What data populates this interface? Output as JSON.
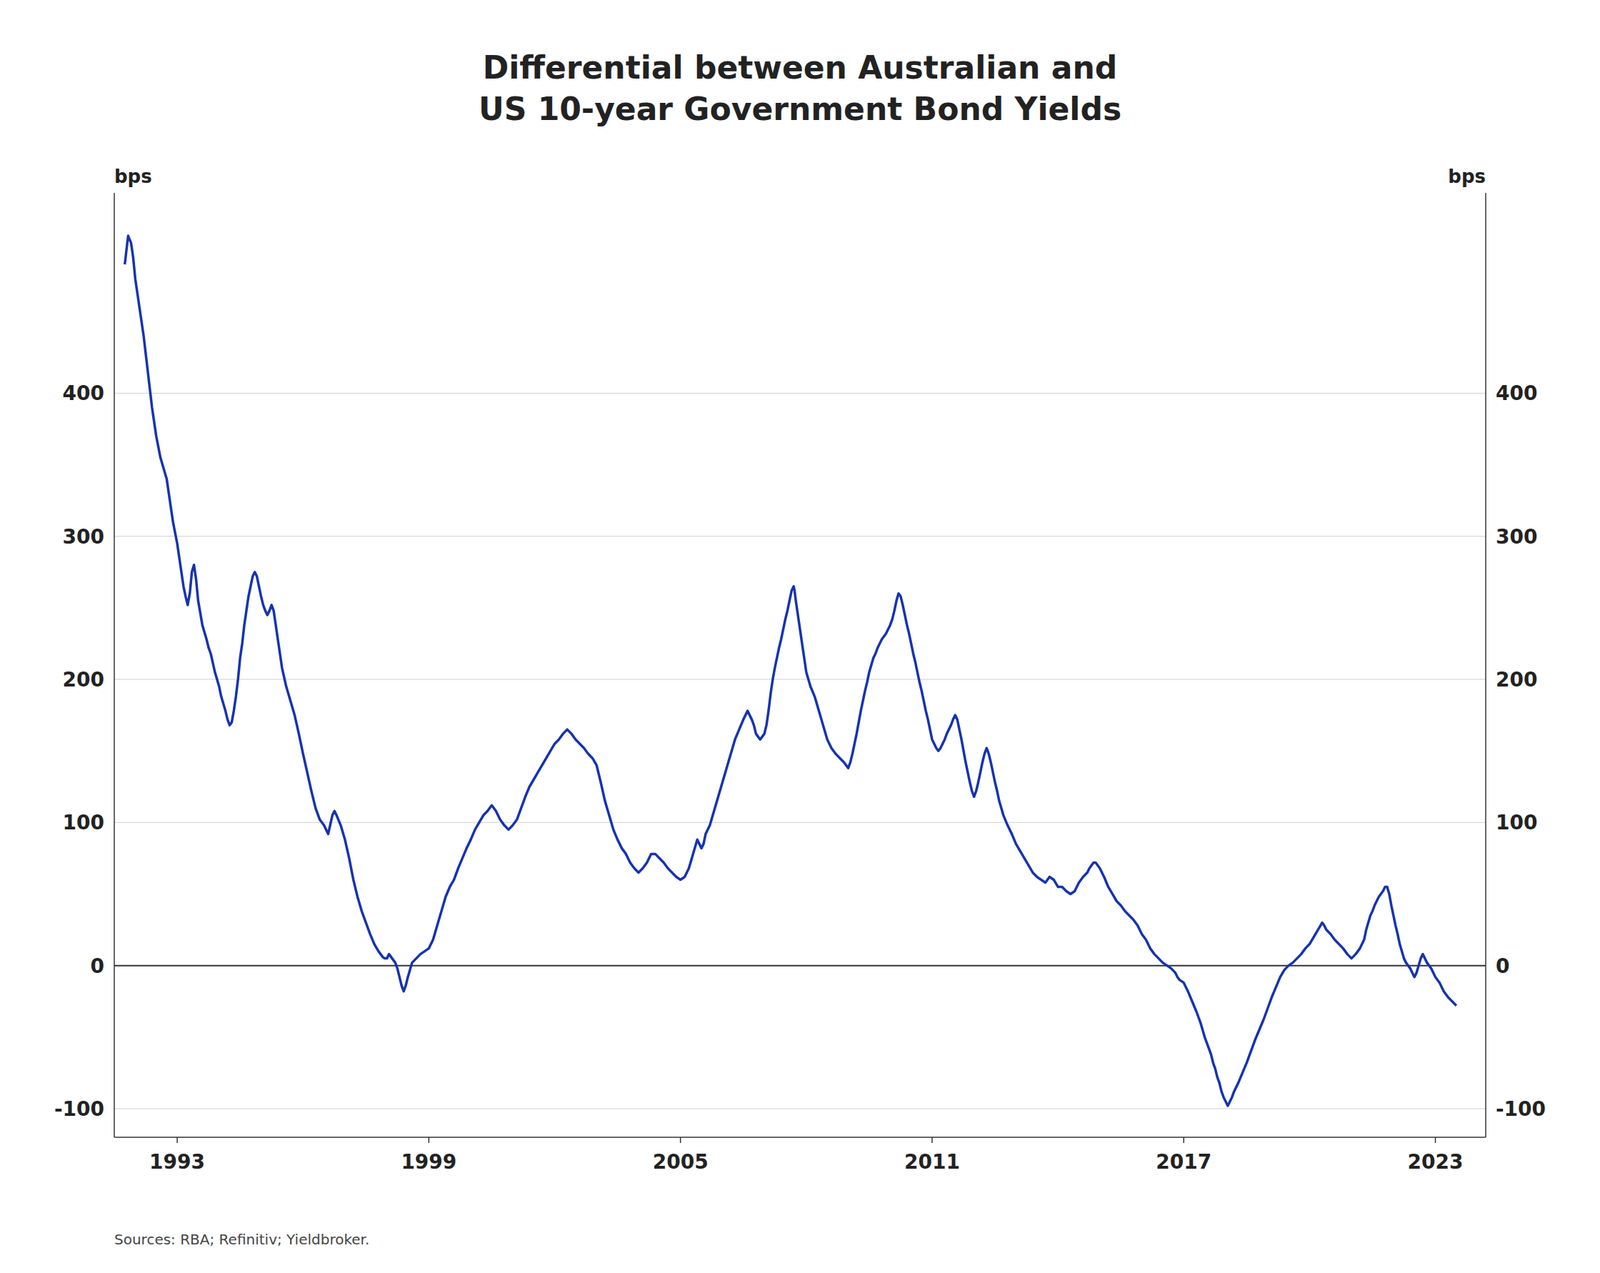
{
  "chart_data": {
    "type": "line",
    "title": "Differential between Australian and\nUS 10-year Government Bond Yields",
    "ylabel": "bps",
    "y2label": "bps",
    "source": "Sources: RBA; Refinitiv; Yieldbroker.",
    "xlim": [
      1991.5,
      2024.2
    ],
    "ylim": [
      -120,
      540
    ],
    "yticks": [
      -100,
      0,
      100,
      200,
      300,
      400
    ],
    "y2lim": [
      -120,
      540
    ],
    "y2ticks": [
      -100,
      0,
      100,
      200,
      300,
      400
    ],
    "xticks": [
      1993,
      1999,
      2005,
      2011,
      2017,
      2023
    ],
    "grid": true,
    "color": "#1533b0",
    "x": [
      1991.75,
      1991.83,
      1991.9,
      1991.95,
      1992.0,
      1992.1,
      1992.2,
      1992.3,
      1992.4,
      1992.5,
      1992.6,
      1992.7,
      1992.75,
      1992.8,
      1992.9,
      1993.0,
      1993.05,
      1993.1,
      1993.15,
      1993.2,
      1993.25,
      1993.3,
      1993.35,
      1993.4,
      1993.45,
      1993.5,
      1993.6,
      1993.7,
      1993.75,
      1993.8,
      1993.9,
      1994.0,
      1994.05,
      1994.1,
      1994.15,
      1994.2,
      1994.25,
      1994.3,
      1994.35,
      1994.4,
      1994.45,
      1994.5,
      1994.55,
      1994.6,
      1994.65,
      1994.7,
      1994.75,
      1994.8,
      1994.85,
      1994.9,
      1994.95,
      1995.0,
      1995.05,
      1995.1,
      1995.15,
      1995.2,
      1995.25,
      1995.3,
      1995.35,
      1995.4,
      1995.45,
      1995.5,
      1995.6,
      1995.7,
      1995.8,
      1995.9,
      1996.0,
      1996.1,
      1996.2,
      1996.3,
      1996.4,
      1996.5,
      1996.6,
      1996.7,
      1996.75,
      1996.8,
      1996.9,
      1997.0,
      1997.1,
      1997.2,
      1997.3,
      1997.4,
      1997.5,
      1997.6,
      1997.7,
      1997.8,
      1997.85,
      1997.9,
      1997.95,
      1998.0,
      1998.05,
      1998.1,
      1998.15,
      1998.2,
      1998.25,
      1998.3,
      1998.35,
      1998.4,
      1998.45,
      1998.5,
      1998.55,
      1998.6,
      1998.7,
      1998.8,
      1998.9,
      1999.0,
      1999.1,
      1999.2,
      1999.3,
      1999.4,
      1999.5,
      1999.6,
      1999.7,
      1999.8,
      1999.9,
      2000.0,
      2000.1,
      2000.2,
      2000.3,
      2000.4,
      2000.5,
      2000.6,
      2000.7,
      2000.8,
      2000.9,
      2001.0,
      2001.1,
      2001.2,
      2001.3,
      2001.4,
      2001.5,
      2001.6,
      2001.7,
      2001.8,
      2001.9,
      2002.0,
      2002.1,
      2002.2,
      2002.3,
      2002.4,
      2002.5,
      2002.6,
      2002.7,
      2002.8,
      2002.9,
      2003.0,
      2003.1,
      2003.2,
      2003.3,
      2003.4,
      2003.5,
      2003.6,
      2003.7,
      2003.8,
      2003.9,
      2004.0,
      2004.1,
      2004.2,
      2004.3,
      2004.4,
      2004.5,
      2004.6,
      2004.7,
      2004.8,
      2004.9,
      2005.0,
      2005.1,
      2005.2,
      2005.3,
      2005.4,
      2005.5,
      2005.55,
      2005.6,
      2005.7,
      2005.8,
      2005.9,
      2006.0,
      2006.1,
      2006.2,
      2006.3,
      2006.4,
      2006.5,
      2006.6,
      2006.65,
      2006.7,
      2006.75,
      2006.8,
      2006.9,
      2007.0,
      2007.05,
      2007.1,
      2007.15,
      2007.2,
      2007.25,
      2007.3,
      2007.35,
      2007.4,
      2007.45,
      2007.5,
      2007.55,
      2007.6,
      2007.65,
      2007.7,
      2007.72,
      2007.75,
      2007.8,
      2007.85,
      2007.9,
      2007.95,
      2008.0,
      2008.1,
      2008.2,
      2008.3,
      2008.4,
      2008.5,
      2008.6,
      2008.7,
      2008.8,
      2008.9,
      2009.0,
      2009.05,
      2009.1,
      2009.15,
      2009.2,
      2009.25,
      2009.3,
      2009.35,
      2009.4,
      2009.45,
      2009.5,
      2009.55,
      2009.6,
      2009.65,
      2009.7,
      2009.75,
      2009.8,
      2009.85,
      2009.9,
      2009.95,
      2010.0,
      2010.05,
      2010.1,
      2010.15,
      2010.2,
      2010.25,
      2010.3,
      2010.35,
      2010.4,
      2010.45,
      2010.5,
      2010.55,
      2010.6,
      2010.65,
      2010.7,
      2010.75,
      2010.8,
      2010.85,
      2010.9,
      2010.95,
      2011.0,
      2011.05,
      2011.1,
      2011.15,
      2011.2,
      2011.25,
      2011.3,
      2011.35,
      2011.4,
      2011.45,
      2011.5,
      2011.55,
      2011.6,
      2011.65,
      2011.7,
      2011.75,
      2011.8,
      2011.85,
      2011.9,
      2011.95,
      2012.0,
      2012.05,
      2012.1,
      2012.15,
      2012.2,
      2012.25,
      2012.3,
      2012.35,
      2012.4,
      2012.45,
      2012.5,
      2012.55,
      2012.6,
      2012.7,
      2012.8,
      2012.9,
      2013.0,
      2013.1,
      2013.2,
      2013.3,
      2013.4,
      2013.5,
      2013.6,
      2013.7,
      2013.75,
      2013.8,
      2013.9,
      2014.0,
      2014.1,
      2014.2,
      2014.3,
      2014.4,
      2014.5,
      2014.6,
      2014.7,
      2014.75,
      2014.8,
      2014.85,
      2014.9,
      2014.95,
      2015.0,
      2015.1,
      2015.2,
      2015.3,
      2015.4,
      2015.5,
      2015.6,
      2015.7,
      2015.8,
      2015.9,
      2016.0,
      2016.1,
      2016.2,
      2016.3,
      2016.4,
      2016.5,
      2016.6,
      2016.7,
      2016.8,
      2016.85,
      2016.9,
      2017.0,
      2017.1,
      2017.2,
      2017.3,
      2017.4,
      2017.5,
      2017.6,
      2017.65,
      2017.7,
      2017.75,
      2017.8,
      2017.85,
      2017.9,
      2017.95,
      2018.0,
      2018.05,
      2018.1,
      2018.15,
      2018.2,
      2018.3,
      2018.4,
      2018.5,
      2018.6,
      2018.7,
      2018.8,
      2018.9,
      2019.0,
      2019.1,
      2019.2,
      2019.3,
      2019.4,
      2019.5,
      2019.6,
      2019.7,
      2019.8,
      2019.9,
      2020.0,
      2020.1,
      2020.2,
      2020.3,
      2020.35,
      2020.4,
      2020.5,
      2020.6,
      2020.7,
      2020.8,
      2020.9,
      2021.0,
      2021.1,
      2021.2,
      2021.3,
      2021.35,
      2021.4,
      2021.45,
      2021.5,
      2021.55,
      2021.6,
      2021.65,
      2021.7,
      2021.75,
      2021.8,
      2021.85,
      2021.9,
      2021.95,
      2022.0,
      2022.05,
      2022.1,
      2022.15,
      2022.2,
      2022.25,
      2022.3,
      2022.35,
      2022.4,
      2022.45,
      2022.5,
      2022.55,
      2022.6,
      2022.65,
      2022.7,
      2022.75,
      2022.8,
      2022.85,
      2022.9,
      2022.95,
      2023.0,
      2023.1,
      2023.2,
      2023.3,
      2023.4,
      2023.5
    ],
    "values": [
      490,
      510,
      505,
      495,
      480,
      460,
      440,
      415,
      390,
      370,
      355,
      345,
      340,
      330,
      310,
      295,
      285,
      275,
      265,
      258,
      252,
      260,
      275,
      280,
      270,
      255,
      238,
      228,
      222,
      218,
      205,
      195,
      188,
      183,
      178,
      172,
      168,
      170,
      178,
      188,
      200,
      215,
      225,
      238,
      248,
      258,
      265,
      272,
      275,
      272,
      265,
      258,
      252,
      248,
      245,
      248,
      252,
      248,
      238,
      228,
      218,
      208,
      195,
      185,
      175,
      162,
      148,
      135,
      122,
      110,
      102,
      98,
      92,
      105,
      108,
      105,
      98,
      88,
      75,
      60,
      48,
      38,
      30,
      22,
      15,
      10,
      8,
      6,
      5,
      5,
      8,
      6,
      4,
      2,
      -2,
      -8,
      -14,
      -18,
      -14,
      -8,
      -3,
      2,
      5,
      8,
      10,
      12,
      18,
      28,
      38,
      48,
      55,
      60,
      68,
      75,
      82,
      88,
      95,
      100,
      105,
      108,
      112,
      108,
      102,
      98,
      95,
      98,
      102,
      110,
      118,
      125,
      130,
      135,
      140,
      145,
      150,
      155,
      158,
      162,
      165,
      162,
      158,
      155,
      152,
      148,
      145,
      140,
      128,
      115,
      105,
      95,
      88,
      82,
      78,
      72,
      68,
      65,
      68,
      72,
      78,
      78,
      75,
      72,
      68,
      65,
      62,
      60,
      62,
      68,
      78,
      88,
      82,
      85,
      92,
      98,
      108,
      118,
      128,
      138,
      148,
      158,
      165,
      172,
      178,
      175,
      172,
      168,
      162,
      158,
      162,
      168,
      178,
      190,
      200,
      208,
      215,
      222,
      228,
      235,
      242,
      248,
      255,
      262,
      265,
      262,
      255,
      245,
      235,
      225,
      215,
      205,
      195,
      188,
      178,
      168,
      158,
      152,
      148,
      145,
      142,
      138,
      142,
      148,
      155,
      162,
      170,
      178,
      185,
      192,
      198,
      205,
      210,
      215,
      218,
      222,
      225,
      228,
      230,
      232,
      235,
      238,
      242,
      248,
      255,
      260,
      258,
      252,
      245,
      238,
      232,
      225,
      218,
      212,
      205,
      198,
      192,
      185,
      178,
      172,
      165,
      158,
      155,
      152,
      150,
      152,
      155,
      158,
      162,
      165,
      168,
      172,
      175,
      172,
      165,
      158,
      150,
      142,
      135,
      128,
      122,
      118,
      122,
      128,
      135,
      142,
      148,
      152,
      148,
      142,
      135,
      128,
      122,
      115,
      105,
      98,
      92,
      85,
      80,
      75,
      70,
      65,
      62,
      60,
      58,
      60,
      62,
      60,
      55,
      55,
      52,
      50,
      52,
      58,
      62,
      65,
      68,
      70,
      72,
      72,
      70,
      68,
      62,
      55,
      50,
      45,
      42,
      38,
      35,
      32,
      28,
      22,
      18,
      12,
      8,
      5,
      2,
      0,
      -2,
      -5,
      -8,
      -10,
      -12,
      -18,
      -25,
      -32,
      -40,
      -50,
      -58,
      -62,
      -68,
      -72,
      -78,
      -82,
      -88,
      -92,
      -95,
      -98,
      -95,
      -92,
      -88,
      -82,
      -75,
      -68,
      -60,
      -52,
      -45,
      -38,
      -30,
      -22,
      -15,
      -8,
      -3,
      0,
      2,
      5,
      8,
      12,
      15,
      20,
      25,
      30,
      28,
      25,
      22,
      18,
      15,
      12,
      8,
      5,
      8,
      12,
      18,
      25,
      30,
      35,
      38,
      42,
      45,
      48,
      50,
      52,
      55,
      55,
      50,
      42,
      35,
      28,
      22,
      15,
      10,
      5,
      2,
      0,
      -2,
      -5,
      -8,
      -5,
      0,
      5,
      8,
      5,
      2,
      0,
      -2,
      -5,
      -8,
      -12,
      -18,
      -22,
      -25,
      -28
    ]
  }
}
